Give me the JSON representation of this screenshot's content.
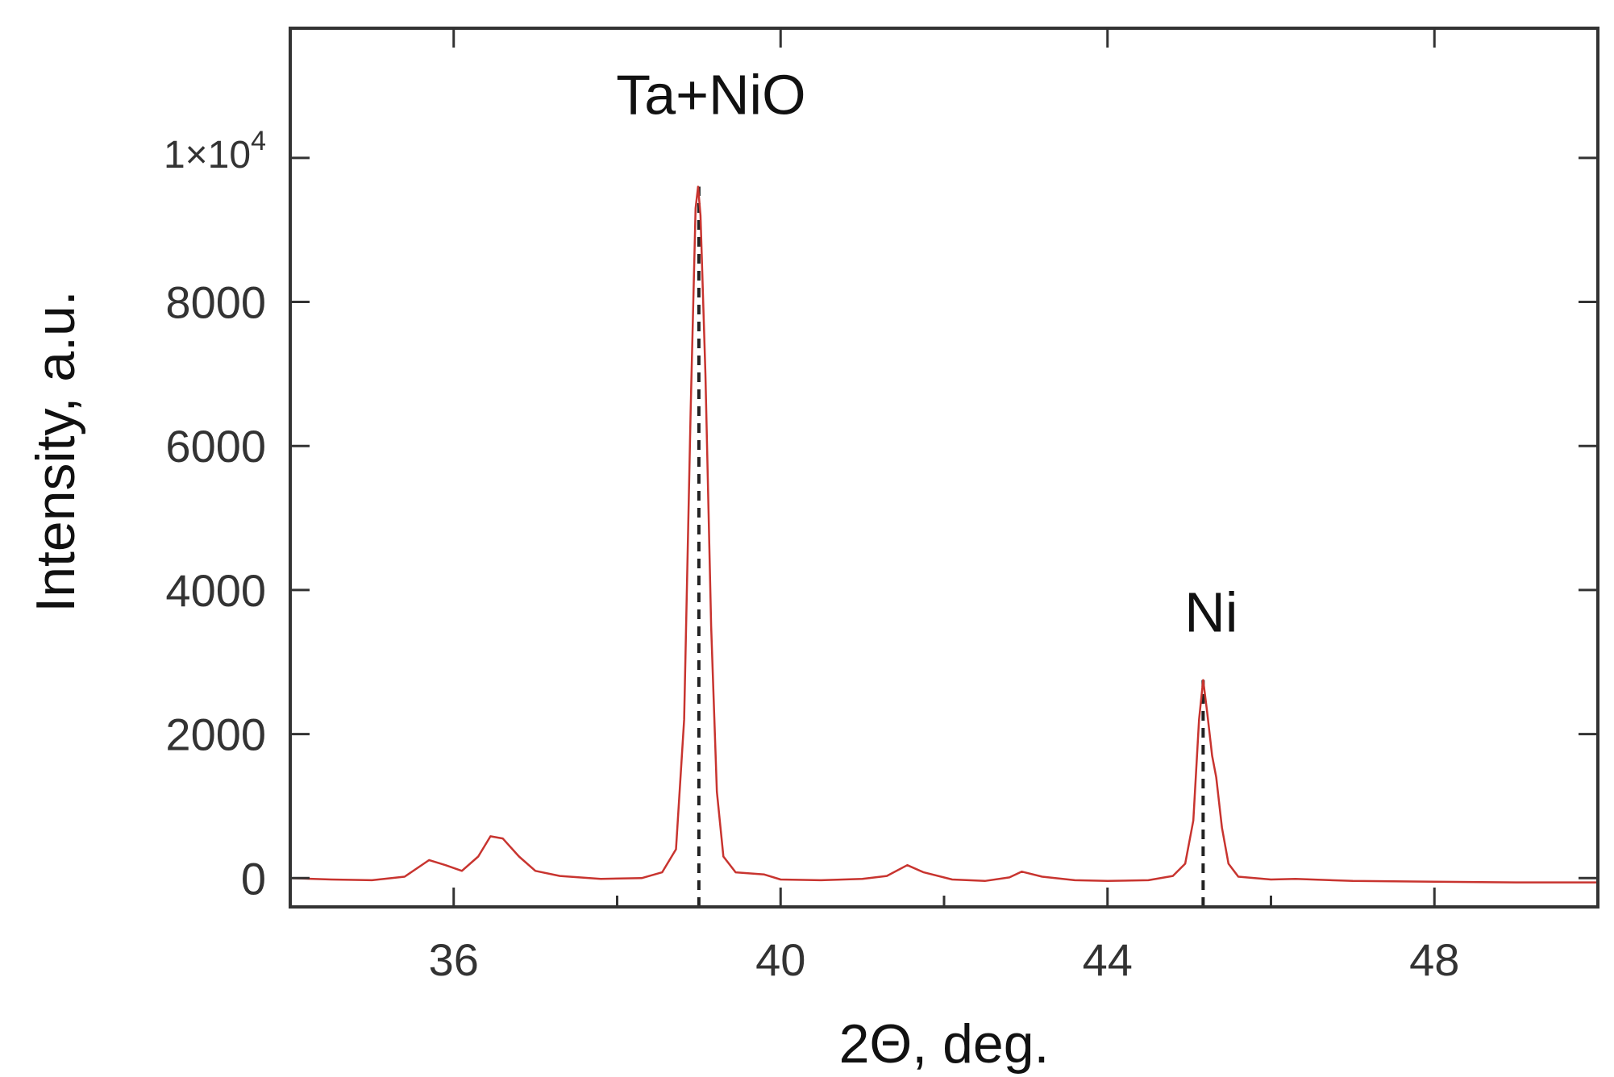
{
  "chart_data": {
    "type": "line",
    "xlabel": "2Θ, deg.",
    "ylabel": "Intensity, a.u.",
    "xlim": [
      34,
      50
    ],
    "ylim": [
      -400,
      11800
    ],
    "x_ticks": [
      36,
      40,
      44,
      48
    ],
    "x_minor_ticks": [
      38,
      42,
      46
    ],
    "y_ticks": [
      0,
      2000,
      4000,
      6000,
      8000
    ],
    "y_top_tick": {
      "value": 10000,
      "mantissa": "1×10",
      "exponent": "4"
    },
    "grid": false,
    "line_color": "#c8342f",
    "marker_color": "#222222",
    "series": [
      {
        "points": [
          [
            34.0,
            0
          ],
          [
            34.5,
            -20
          ],
          [
            35.0,
            -30
          ],
          [
            35.4,
            20
          ],
          [
            35.7,
            250
          ],
          [
            35.9,
            180
          ],
          [
            36.1,
            100
          ],
          [
            36.3,
            300
          ],
          [
            36.45,
            580
          ],
          [
            36.6,
            550
          ],
          [
            36.8,
            300
          ],
          [
            37.0,
            100
          ],
          [
            37.3,
            30
          ],
          [
            37.8,
            -10
          ],
          [
            38.3,
            0
          ],
          [
            38.55,
            80
          ],
          [
            38.72,
            400
          ],
          [
            38.82,
            2200
          ],
          [
            38.9,
            6500
          ],
          [
            38.96,
            9300
          ],
          [
            38.99,
            9600
          ],
          [
            39.02,
            9200
          ],
          [
            39.08,
            7000
          ],
          [
            39.15,
            3500
          ],
          [
            39.22,
            1200
          ],
          [
            39.3,
            300
          ],
          [
            39.45,
            80
          ],
          [
            39.8,
            50
          ],
          [
            40.0,
            -20
          ],
          [
            40.5,
            -30
          ],
          [
            41.0,
            -10
          ],
          [
            41.3,
            30
          ],
          [
            41.55,
            180
          ],
          [
            41.75,
            80
          ],
          [
            42.1,
            -20
          ],
          [
            42.5,
            -40
          ],
          [
            42.8,
            10
          ],
          [
            42.95,
            90
          ],
          [
            43.2,
            20
          ],
          [
            43.6,
            -30
          ],
          [
            44.0,
            -40
          ],
          [
            44.5,
            -30
          ],
          [
            44.8,
            30
          ],
          [
            44.95,
            200
          ],
          [
            45.05,
            800
          ],
          [
            45.12,
            2200
          ],
          [
            45.17,
            2750
          ],
          [
            45.22,
            2300
          ],
          [
            45.28,
            1700
          ],
          [
            45.33,
            1400
          ],
          [
            45.4,
            700
          ],
          [
            45.48,
            200
          ],
          [
            45.6,
            20
          ],
          [
            46.0,
            -20
          ],
          [
            46.3,
            -10
          ],
          [
            47.0,
            -40
          ],
          [
            48.0,
            -50
          ],
          [
            49.0,
            -60
          ],
          [
            50.0,
            -60
          ]
        ]
      }
    ],
    "annotations": [
      {
        "text": "Ta+NiO",
        "x": 39.0,
        "y": 9600
      },
      {
        "text": "Ni",
        "x": 45.17,
        "y": 2750
      }
    ]
  }
}
